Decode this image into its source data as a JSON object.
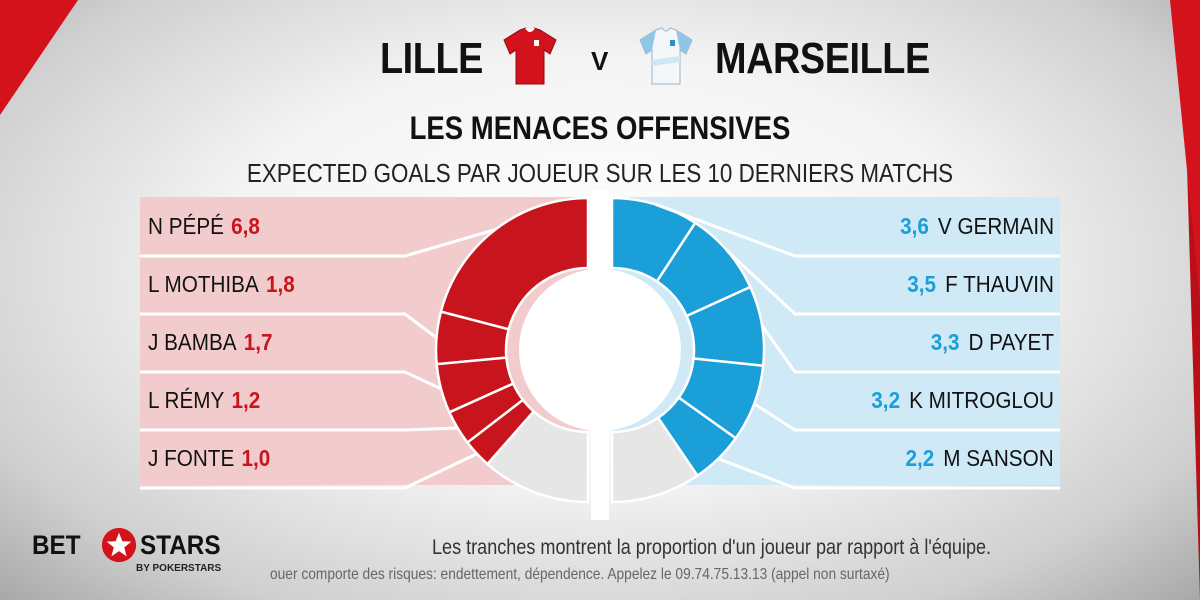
{
  "header": {
    "home_team": "LILLE",
    "vs": "V",
    "away_team": "MARSEILLE",
    "title": "LES MENACES OFFENSIVES",
    "subtitle": "EXPECTED GOALS PAR JOUEUR SUR LES 10 DERNIERS MATCHS"
  },
  "colors": {
    "home": "#c8151d",
    "home_panel": "#f2cccd",
    "away": "#1a9fd8",
    "away_panel": "#cfe9f6",
    "rest": "#e6e6e6"
  },
  "chart_data": [
    {
      "type": "pie",
      "series_name": "LILLE",
      "categories": [
        "N PÉPÉ",
        "L MOTHIBA",
        "J BAMBA",
        "L RÉMY",
        "J FONTE"
      ],
      "value_labels": [
        "6,8",
        "1,8",
        "1,7",
        "1,2",
        "1,0"
      ],
      "values": [
        6.8,
        1.8,
        1.7,
        1.2,
        1.0
      ],
      "remainder_fraction": 0.23
    },
    {
      "type": "pie",
      "series_name": "MARSEILLE",
      "categories": [
        "V GERMAIN",
        "F THAUVIN",
        "D PAYET",
        "K MITROGLOU",
        "M SANSON"
      ],
      "value_labels": [
        "3,6",
        "3,5",
        "3,3",
        "3,2",
        "2,2"
      ],
      "values": [
        3.6,
        3.5,
        3.3,
        3.2,
        2.2
      ],
      "remainder_fraction": 0.19
    }
  ],
  "footer": {
    "logo_bet": "BET",
    "logo_stars": "STARS",
    "logo_sub": "BY POKERSTARS",
    "note": "Les tranches montrent la proportion d'un joueur par rapport à l'équipe.",
    "disclaimer": "ouer comporte des risques: endettement, dépendence. Appelez le 09.74.75.13.13 (appel non surtaxé)"
  }
}
